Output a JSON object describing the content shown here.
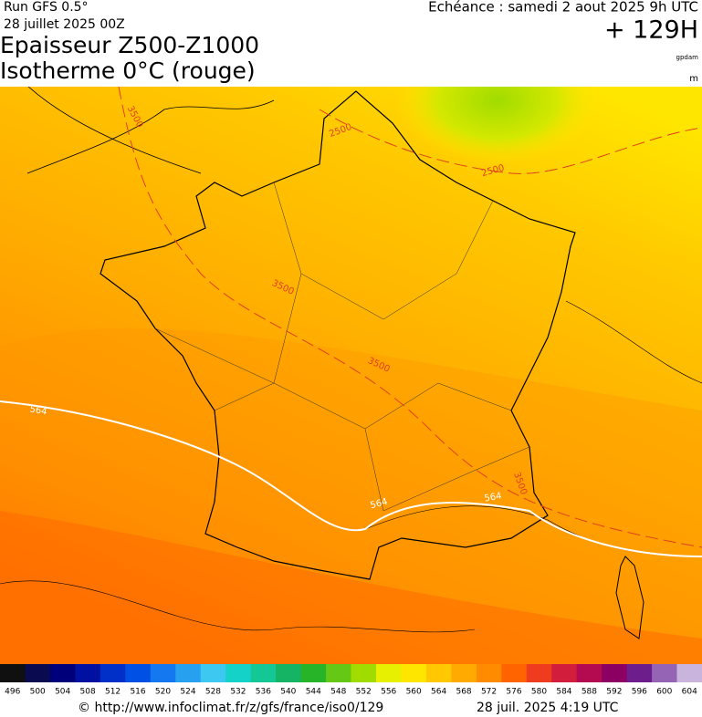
{
  "header": {
    "run": "Run GFS 0.5°",
    "run_date": "28 juillet 2025 00Z",
    "valid": "Echéance : samedi 2 aout 2025 9h UTC",
    "lead": "+ 129H",
    "title": "Epaisseur Z500-Z1000",
    "subtitle": "Isotherme 0°C (rouge)",
    "unit1": "gpdam",
    "unit2": "m"
  },
  "map": {
    "labels": [
      3500,
      2500,
      2500,
      3500,
      3500,
      3500,
      564,
      564,
      564
    ]
  },
  "colorbar": {
    "labels": [
      496,
      500,
      504,
      508,
      512,
      516,
      520,
      524,
      528,
      532,
      536,
      540,
      544,
      548,
      552,
      556,
      560,
      564,
      568,
      572,
      576,
      580,
      584,
      588,
      592,
      596,
      600,
      604
    ],
    "colors": [
      "#101010",
      "#0a0a50",
      "#00007a",
      "#0010a0",
      "#0030c8",
      "#0050e6",
      "#1478f0",
      "#28a0f0",
      "#3cc8f0",
      "#14d2c8",
      "#14c896",
      "#14b464",
      "#28b428",
      "#64c814",
      "#a0dc00",
      "#e6f000",
      "#ffe600",
      "#ffc800",
      "#ffaa00",
      "#ff8c00",
      "#ff6400",
      "#f03c1e",
      "#d21e3c",
      "#b40a50",
      "#8c0064",
      "#6e1e8c",
      "#9664b4",
      "#c8b4dc"
    ]
  },
  "footer": {
    "source": "© http://www.infoclimat.fr/z/gfs/france/iso0/129",
    "generated": "28 juil. 2025  4:19 UTC"
  }
}
